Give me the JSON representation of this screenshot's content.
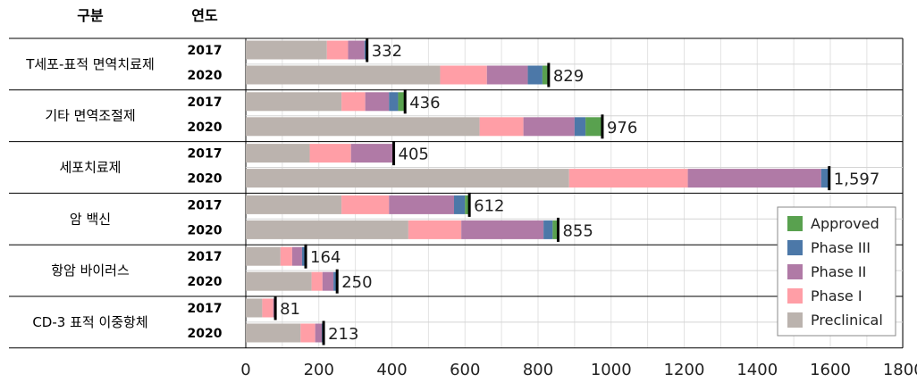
{
  "header": {
    "category_label": "구분",
    "year_label": "연도"
  },
  "chart_data": {
    "type": "bar",
    "orientation": "horizontal",
    "stacked": true,
    "xlim": [
      0,
      1800
    ],
    "x_ticks": [
      "0",
      "200",
      "400",
      "600",
      "800",
      "1000",
      "1200",
      "1400",
      "1600",
      "1800"
    ],
    "grid": true,
    "legend_position": "bottom-right",
    "series": [
      {
        "name": "Preclinical",
        "color": "#bbb3ae"
      },
      {
        "name": "Phase I",
        "color": "#ff9ea6"
      },
      {
        "name": "Phase II",
        "color": "#b07aa6"
      },
      {
        "name": "Phase III",
        "color": "#4c78a8"
      },
      {
        "name": "Approved",
        "color": "#59a14f"
      }
    ],
    "legend_order": [
      "Approved",
      "Phase III",
      "Phase II",
      "Phase I",
      "Preclinical"
    ],
    "groups": [
      {
        "category": "T세포-표적 면역치료제",
        "rows": [
          {
            "year": "2017",
            "values": [
              222,
              58,
              45,
              7,
              0
            ],
            "total_label": "332"
          },
          {
            "year": "2020",
            "values": [
              532,
              128,
              112,
              40,
              17
            ],
            "total_label": "829"
          }
        ]
      },
      {
        "category": "기타 면역조절제",
        "rows": [
          {
            "year": "2017",
            "values": [
              262,
              65,
              65,
              25,
              19
            ],
            "total_label": "436"
          },
          {
            "year": "2020",
            "values": [
              640,
              120,
              140,
              30,
              46
            ],
            "total_label": "976"
          }
        ]
      },
      {
        "category": "세포치료제",
        "rows": [
          {
            "year": "2017",
            "values": [
              175,
              113,
              117,
              0,
              0
            ],
            "total_label": "405"
          },
          {
            "year": "2020",
            "values": [
              885,
              325,
              365,
              20,
              2
            ],
            "total_label": "1,597"
          }
        ]
      },
      {
        "category": "암 백신",
        "rows": [
          {
            "year": "2017",
            "values": [
              262,
              130,
              178,
              30,
              12
            ],
            "total_label": "612"
          },
          {
            "year": "2020",
            "values": [
              445,
              145,
              225,
              25,
              15
            ],
            "total_label": "855"
          }
        ]
      },
      {
        "category": "항암 바이러스",
        "rows": [
          {
            "year": "2017",
            "values": [
              95,
              32,
              27,
              10,
              0
            ],
            "total_label": "164"
          },
          {
            "year": "2020",
            "values": [
              180,
              30,
              30,
              10,
              0
            ],
            "total_label": "250"
          }
        ]
      },
      {
        "category": "CD-3 표적 이중항체",
        "rows": [
          {
            "year": "2017",
            "values": [
              45,
              30,
              6,
              0,
              0
            ],
            "total_label": "81"
          },
          {
            "year": "2020",
            "values": [
              150,
              40,
              18,
              5,
              0
            ],
            "total_label": "213"
          }
        ]
      }
    ]
  }
}
